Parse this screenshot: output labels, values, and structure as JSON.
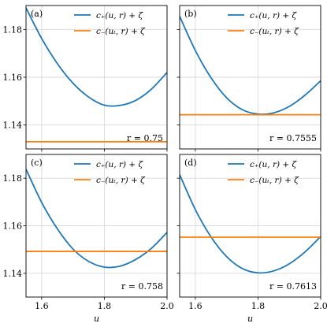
{
  "chart_data": [
    {
      "type": "line",
      "panel_label": "(a)",
      "annotation": "r = 0.75",
      "xlabel": "",
      "ylabel": "",
      "xlim": [
        1.55,
        2.0
      ],
      "ylim": [
        1.13,
        1.19
      ],
      "grid": true,
      "legend_placement": "top-right",
      "series": [
        {
          "name": "c₊(u, r) + ζ",
          "color": "#1f77b4",
          "points": [
            [
              1.55,
              1.189
            ],
            [
              1.6,
              1.1762
            ],
            [
              1.65,
              1.1657
            ],
            [
              1.7,
              1.1575
            ],
            [
              1.75,
              1.1517
            ],
            [
              1.8,
              1.1483
            ],
            [
              1.85,
              1.1482
            ],
            [
              1.9,
              1.1503
            ],
            [
              1.95,
              1.155
            ],
            [
              2.0,
              1.162
            ]
          ]
        },
        {
          "name": "c₋(uₜ, r) + ζ",
          "color": "#ff7f0e",
          "points": [
            [
              1.55,
              1.133
            ],
            [
              2.0,
              1.133
            ]
          ]
        }
      ]
    },
    {
      "type": "line",
      "panel_label": "(b)",
      "annotation": "r = 0.7555",
      "xlabel": "",
      "ylabel": "",
      "xlim": [
        1.55,
        2.0
      ],
      "ylim": [
        1.13,
        1.19
      ],
      "grid": true,
      "legend_placement": "top-right",
      "series": [
        {
          "name": "c₊(u, r) + ζ",
          "color": "#1f77b4",
          "points": [
            [
              1.55,
              1.1855
            ],
            [
              1.6,
              1.1712
            ],
            [
              1.65,
              1.1598
            ],
            [
              1.7,
              1.1514
            ],
            [
              1.75,
              1.1464
            ],
            [
              1.8,
              1.1446
            ],
            [
              1.85,
              1.1451
            ],
            [
              1.9,
              1.1478
            ],
            [
              1.95,
              1.1525
            ],
            [
              2.0,
              1.1585
            ]
          ]
        },
        {
          "name": "c₋(uₜ, r) + ζ",
          "color": "#ff7f0e",
          "points": [
            [
              1.55,
              1.1443
            ],
            [
              2.0,
              1.1443
            ]
          ]
        }
      ]
    },
    {
      "type": "line",
      "panel_label": "(c)",
      "annotation": "r = 0.758",
      "xlabel": "u",
      "ylabel": "",
      "xlim": [
        1.55,
        2.0
      ],
      "ylim": [
        1.13,
        1.19
      ],
      "grid": true,
      "legend_placement": "top-right",
      "series": [
        {
          "name": "c₊(u, r) + ζ",
          "color": "#1f77b4",
          "points": [
            [
              1.55,
              1.1838
            ],
            [
              1.6,
              1.1698
            ],
            [
              1.65,
              1.1587
            ],
            [
              1.7,
              1.1502
            ],
            [
              1.75,
              1.145
            ],
            [
              1.8,
              1.1426
            ],
            [
              1.85,
              1.143
            ],
            [
              1.9,
              1.1458
            ],
            [
              1.95,
              1.1505
            ],
            [
              2.0,
              1.1572
            ]
          ]
        },
        {
          "name": "c₋(uₜ, r) + ζ",
          "color": "#ff7f0e",
          "points": [
            [
              1.55,
              1.1492
            ],
            [
              2.0,
              1.1492
            ]
          ]
        }
      ]
    },
    {
      "type": "line",
      "panel_label": "(d)",
      "annotation": "r = 0.7613",
      "xlabel": "u",
      "ylabel": "",
      "xlim": [
        1.55,
        2.0
      ],
      "ylim": [
        1.13,
        1.19
      ],
      "grid": true,
      "legend_placement": "top-right",
      "series": [
        {
          "name": "c₊(u, r) + ζ",
          "color": "#1f77b4",
          "points": [
            [
              1.55,
              1.1815
            ],
            [
              1.6,
              1.1668
            ],
            [
              1.65,
              1.1553
            ],
            [
              1.7,
              1.147
            ],
            [
              1.75,
              1.142
            ],
            [
              1.8,
              1.1402
            ],
            [
              1.85,
              1.141
            ],
            [
              1.9,
              1.144
            ],
            [
              1.95,
              1.149
            ],
            [
              2.0,
              1.1555
            ]
          ]
        },
        {
          "name": "c₋(uₜ, r) + ζ",
          "color": "#ff7f0e",
          "points": [
            [
              1.55,
              1.1552
            ],
            [
              2.0,
              1.1552
            ]
          ]
        }
      ]
    }
  ],
  "axes": {
    "x_ticks": [
      1.6,
      1.8,
      2.0
    ],
    "x_tick_labels": [
      "1.6",
      "1.8",
      "2.0"
    ],
    "y_ticks": [
      1.14,
      1.16,
      1.18
    ],
    "y_tick_labels": [
      "1.14",
      "1.16",
      "1.18"
    ]
  }
}
